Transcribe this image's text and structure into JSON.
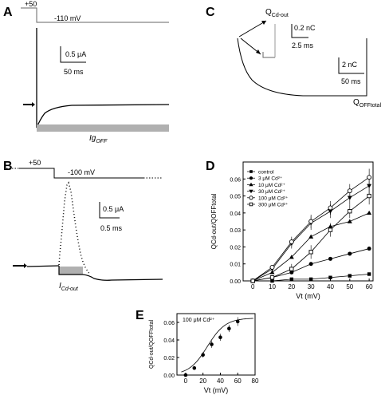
{
  "panel_labels": {
    "a": "A",
    "b": "B",
    "c": "C",
    "d": "D",
    "e": "E"
  },
  "panel_a": {
    "prepulse": "+50",
    "test_voltage": "-110 mV",
    "scale_current": "0.5 μA",
    "scale_time": "50 ms",
    "shaded_label_base": "Ig",
    "shaded_label_sub": "OFF"
  },
  "panel_b": {
    "prepulse": "+50",
    "test_voltage": "-100 mV",
    "scale_current": "0.5 μA",
    "scale_time": "0.5 ms",
    "shaded_label_base": "I",
    "shaded_label_sub": "Cd-out"
  },
  "panel_c": {
    "q_cd_base": "Q",
    "q_cd_sub": "Cd-out",
    "inset_charge": "0.2 nC",
    "inset_time": "2.5 ms",
    "scale_charge": "2 nC",
    "scale_time": "50 ms",
    "q_total_base": "Q",
    "q_total_sub": "OFFtotal"
  },
  "colors": {
    "trace": "#000000",
    "shade": "#b0b0b0",
    "axis": "#000000"
  },
  "chart_data": [
    {
      "panel": "D",
      "type": "scatter",
      "xlabel": "Vt (mV)",
      "ylabel": "QCd-out/QOFFtotal",
      "xlim": [
        -5,
        62
      ],
      "ylim": [
        0,
        0.07
      ],
      "x_ticks": [
        0,
        10,
        20,
        30,
        40,
        50,
        60
      ],
      "y_ticks": [
        "0.00",
        "0.01",
        "0.02",
        "0.03",
        "0.04",
        "0.05",
        "0.06"
      ],
      "x": [
        0,
        10,
        20,
        30,
        40,
        50,
        60
      ],
      "legend_position": "top-left",
      "series": [
        {
          "name": "control",
          "marker": "square-filled",
          "values": [
            0.0,
            0.0,
            0.001,
            0.001,
            0.002,
            0.003,
            0.004
          ]
        },
        {
          "name": "3 μM Cd²⁺",
          "marker": "circle-filled",
          "values": [
            0.0,
            0.002,
            0.005,
            0.01,
            0.013,
            0.016,
            0.019
          ]
        },
        {
          "name": "10 μM Cd²⁺",
          "marker": "triangle-up",
          "values": [
            0.0,
            0.005,
            0.014,
            0.026,
            0.032,
            0.035,
            0.04
          ]
        },
        {
          "name": "30 μM Cd²⁺",
          "marker": "triangle-down",
          "values": [
            0.0,
            0.007,
            0.022,
            0.034,
            0.041,
            0.049,
            0.056
          ]
        },
        {
          "name": "100 μM Cd²⁺",
          "marker": "circle-open",
          "values": [
            0.0,
            0.008,
            0.023,
            0.035,
            0.043,
            0.053,
            0.061
          ]
        },
        {
          "name": "300 μM Cd²⁺",
          "marker": "square-open",
          "values": [
            0.0,
            0.002,
            0.007,
            0.017,
            0.03,
            0.041,
            0.05
          ]
        }
      ],
      "error": [
        0.001,
        0.002,
        0.003,
        0.004,
        0.004,
        0.004,
        0.005
      ]
    },
    {
      "panel": "E",
      "type": "scatter",
      "title": "100 μM Cd²⁺",
      "xlabel": "Vt (mV)",
      "ylabel": "QCd-out/QOFFtotal",
      "xlim": [
        -10,
        80
      ],
      "ylim": [
        0,
        0.07
      ],
      "x_ticks": [
        0,
        20,
        40,
        60,
        80
      ],
      "y_ticks": [
        "0.00",
        "0.02",
        "0.04",
        "0.06"
      ],
      "x": [
        0,
        10,
        20,
        30,
        40,
        50,
        60
      ],
      "values": [
        0.0,
        0.008,
        0.023,
        0.035,
        0.043,
        0.053,
        0.061
      ],
      "error": [
        0.001,
        0.002,
        0.003,
        0.004,
        0.004,
        0.004,
        0.005
      ],
      "fit": "Boltzmann"
    }
  ]
}
